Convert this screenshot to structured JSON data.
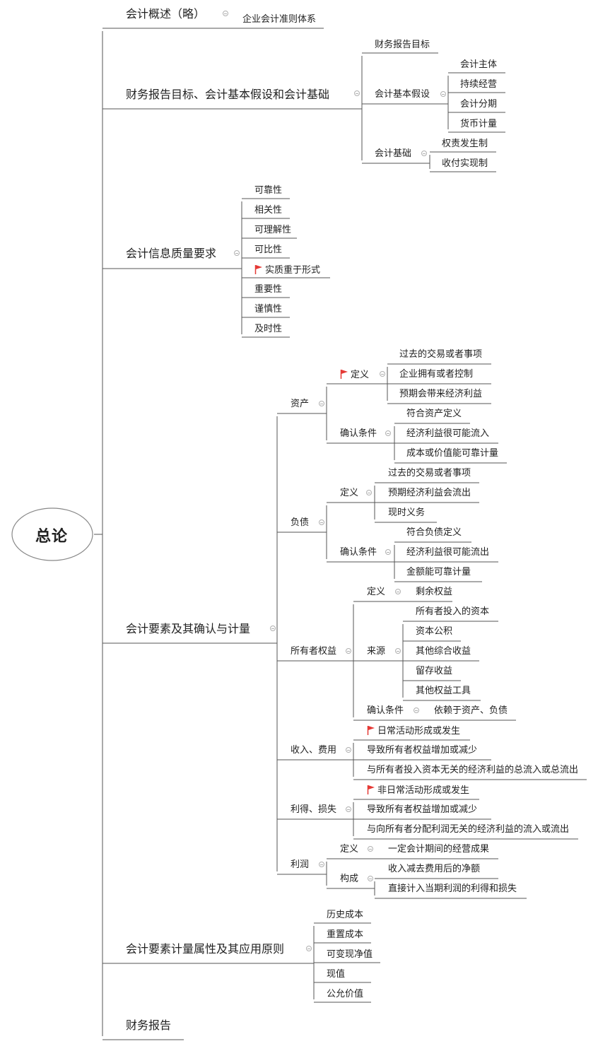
{
  "root": "总论",
  "branches": {
    "b1": {
      "label": "会计概述（略）",
      "children": [
        "企业会计准则体系"
      ]
    },
    "b2": {
      "label": "财务报告目标、会计基本假设和会计基础",
      "goal": "财务报告目标",
      "assumption": {
        "label": "会计基本假设",
        "items": [
          "会计主体",
          "持续经营",
          "会计分期",
          "货币计量"
        ]
      },
      "basis": {
        "label": "会计基础",
        "items": [
          "权责发生制",
          "收付实现制"
        ]
      }
    },
    "b3": {
      "label": "会计信息质量要求",
      "items": [
        "可靠性",
        "相关性",
        "可理解性",
        "可比性",
        "实质重于形式",
        "重要性",
        "谨慎性",
        "及时性"
      ]
    },
    "b4": {
      "label": "会计要素及其确认与计量",
      "asset": {
        "label": "资产",
        "def_label": "定义",
        "defs": [
          "过去的交易或者事项",
          "企业拥有或者控制",
          "预期会带来经济利益"
        ],
        "cond_label": "确认条件",
        "conds": [
          "符合资产定义",
          "经济利益很可能流入",
          "成本或价值能可靠计量"
        ]
      },
      "liability": {
        "label": "负债",
        "def_label": "定义",
        "defs": [
          "过去的交易或者事项",
          "预期经济利益会流出",
          "现时义务"
        ],
        "cond_label": "确认条件",
        "conds": [
          "符合负债定义",
          "经济利益很可能流出",
          "金额能可靠计量"
        ]
      },
      "equity": {
        "label": "所有者权益",
        "def_label": "定义",
        "def_value": "剩余权益",
        "src_label": "来源",
        "sources": [
          "所有者投入的资本",
          "资本公积",
          "其他综合收益",
          "留存收益",
          "其他权益工具"
        ],
        "cond_label": "确认条件",
        "cond_value": "依赖于资产、负债"
      },
      "income": {
        "label": "收入、费用",
        "items": [
          "日常活动形成或发生",
          "导致所有者权益增加或减少",
          "与所有者投入资本无关的经济利益的总流入或总流出"
        ]
      },
      "gain": {
        "label": "利得、损失",
        "items": [
          "非日常活动形成或发生",
          "导致所有者权益增加或减少",
          "与向所有者分配利润无关的经济利益的流入或流出"
        ]
      },
      "profit": {
        "label": "利润",
        "def_label": "定义",
        "def_value": "一定会计期间的经营成果",
        "comp_label": "构成",
        "comps": [
          "收入减去费用后的净额",
          "直接计入当期利润的利得和损失"
        ]
      }
    },
    "b5": {
      "label": "会计要素计量属性及其应用原则",
      "items": [
        "历史成本",
        "重置成本",
        "可变现净值",
        "现值",
        "公允价值"
      ]
    },
    "b6": {
      "label": "财务报告"
    }
  },
  "colors": {
    "line": "#555555",
    "flag": "#e53935",
    "collapse": "#b0b0b0"
  }
}
